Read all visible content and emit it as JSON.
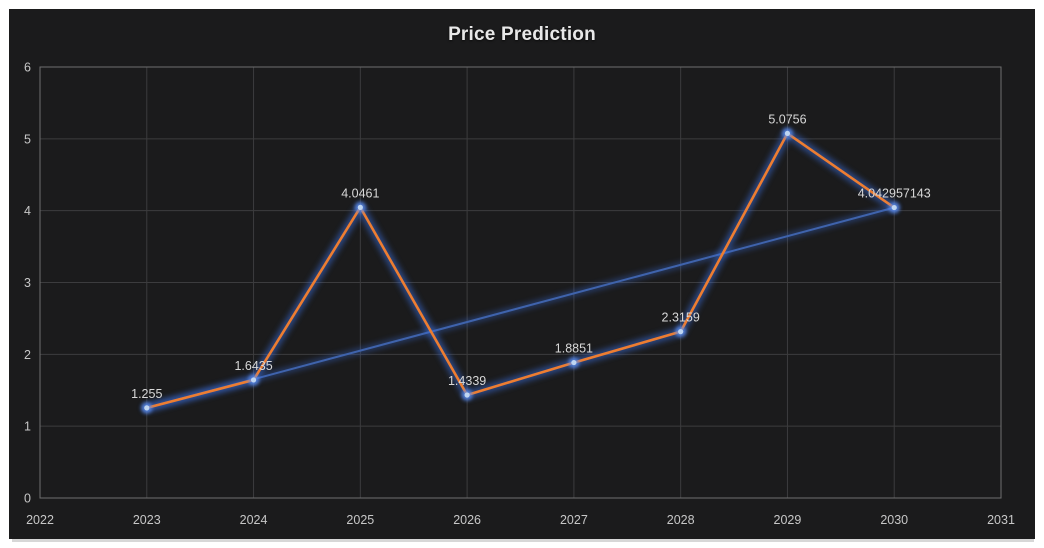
{
  "chart": {
    "colors": {
      "frame": "#ffffff",
      "background": "#1b1b1c",
      "grid": "#3c3c3e",
      "plot_border": "#6f6f6f",
      "tick_text": "#c7c7c7",
      "title_text": "#e8e8e8",
      "label_text": "#d8d8d8",
      "series_line": "#ED7D31",
      "trend_line": "#3F63AC",
      "glow": "#3A6FE0",
      "marker_fill": "#BFD6F2",
      "marker_glow": "#5B8DEF",
      "card_shadow": "#c9c9c9"
    }
  },
  "chart_data": {
    "type": "line",
    "title": "Price Prediction",
    "xlabel": "",
    "ylabel": "",
    "xlim": [
      2022,
      2031
    ],
    "ylim": [
      0,
      6
    ],
    "grid": true,
    "legend": false,
    "x_ticks": [
      "2022",
      "2023",
      "2024",
      "2025",
      "2026",
      "2027",
      "2028",
      "2029",
      "2030",
      "2031"
    ],
    "y_ticks": [
      "0",
      "1",
      "2",
      "3",
      "4",
      "5",
      "6"
    ],
    "x": [
      2023,
      2024,
      2025,
      2026,
      2027,
      2028,
      2029,
      2030
    ],
    "series": [
      {
        "name": "price",
        "values": [
          1.255,
          1.6435,
          4.0461,
          1.4339,
          1.8851,
          2.3159,
          5.0756,
          4.042957143
        ],
        "labels": [
          "1.255",
          "1.6435",
          "4.0461",
          "1.4339",
          "1.8851",
          "2.3159",
          "5.0756",
          "4.042957143"
        ]
      },
      {
        "name": "trend",
        "x": [
          2023,
          2030
        ],
        "values": [
          1.255,
          4.042957143
        ]
      }
    ]
  }
}
